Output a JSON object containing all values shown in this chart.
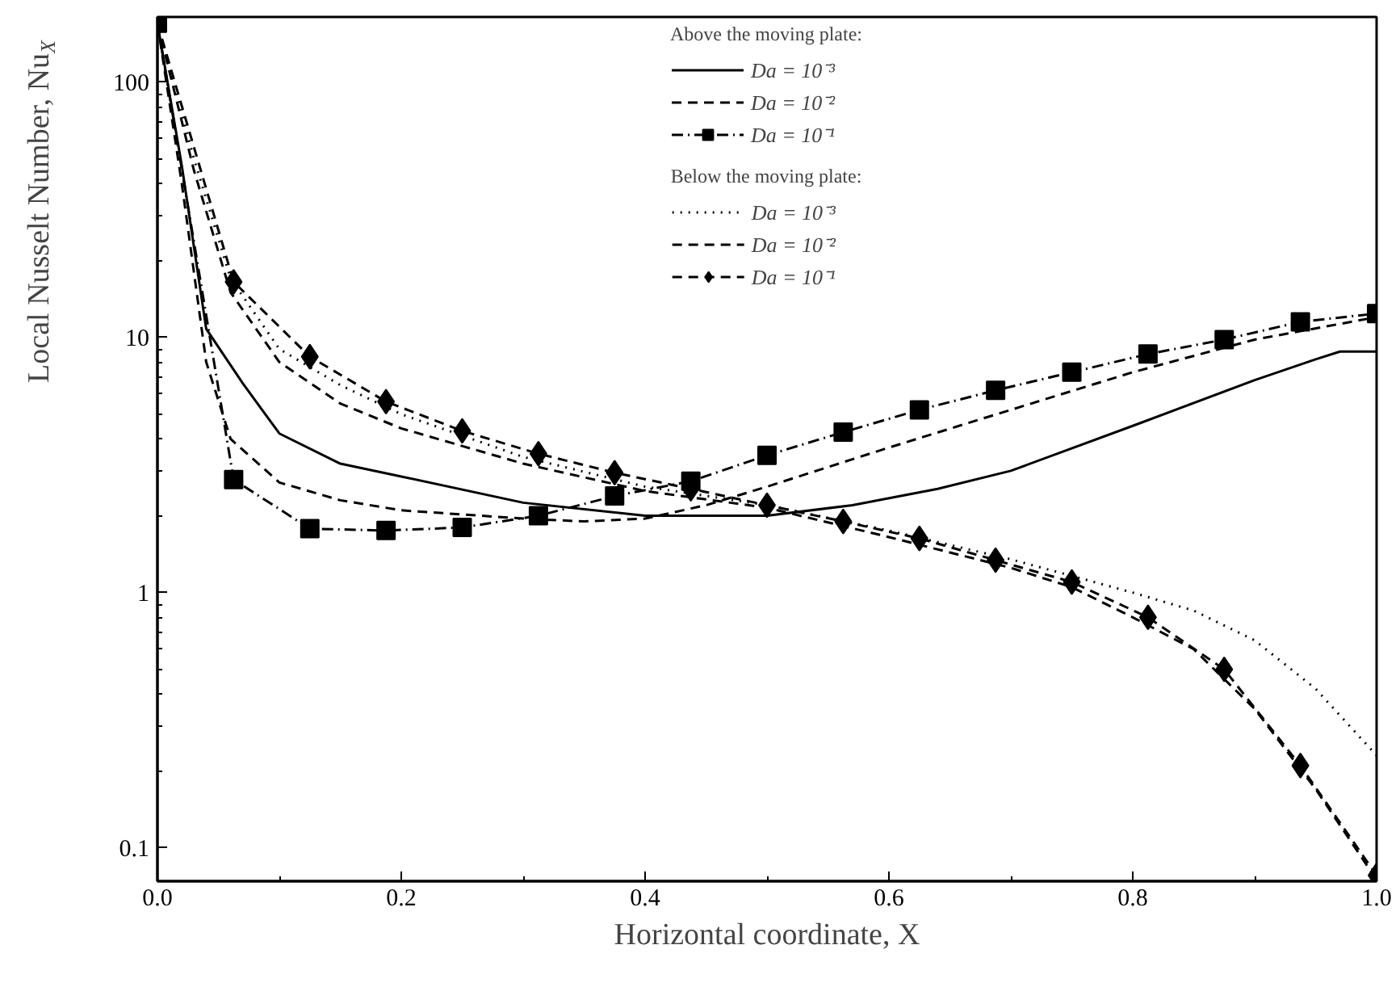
{
  "chart_data": {
    "type": "line",
    "xlabel": "Horizontal coordinate, X",
    "ylabel": "Local Nusselt Number, Nu$_{X}$",
    "legend_title": "Above the moving plate:",
    "annotations": [
      "Below the moving plate:"
    ],
    "log": "y",
    "grid": false,
    "legend": "top",
    "xlim": [
      0,
      1
    ],
    "ylim": [
      0.074,
      180
    ],
    "xticks": [
      {
        "value": 0,
        "label": "0.0"
      },
      {
        "value": 0.2,
        "label": "0.2"
      },
      {
        "value": 0.4,
        "label": "0.4"
      },
      {
        "value": 0.6,
        "label": "0.6"
      },
      {
        "value": 0.8,
        "label": "0.8"
      },
      {
        "value": 1,
        "label": "1.0"
      }
    ],
    "yticks": [
      0.1,
      1,
      10,
      100
    ],
    "series": [
      {
        "name": "Da = 10⁻³",
        "color": "#000000",
        "line_style": "solid",
        "marker": "none",
        "x": [
          0,
          0.02,
          0.04,
          0.07,
          0.1,
          0.15,
          0.2,
          0.3,
          0.4,
          0.5,
          0.57,
          0.64,
          0.7,
          0.8,
          0.9,
          0.95,
          0.97,
          1.0
        ],
        "values": [
          170,
          47,
          10.8,
          6.6,
          4.2,
          3.2,
          2.85,
          2.25,
          2.0,
          2.0,
          2.2,
          2.55,
          3.0,
          4.5,
          6.8,
          8.2,
          8.8,
          8.8
        ]
      },
      {
        "name": "Da = 10⁻²",
        "color": "#000000",
        "line_style": "dashed",
        "marker": "none",
        "x": [
          0,
          0.02,
          0.04,
          0.06,
          0.1,
          0.15,
          0.2,
          0.3,
          0.35,
          0.4,
          0.45,
          0.5,
          0.6,
          0.7,
          0.8,
          0.9,
          1.0
        ],
        "values": [
          170,
          40,
          8,
          4,
          2.7,
          2.3,
          2.1,
          1.95,
          1.9,
          1.95,
          2.2,
          2.6,
          3.7,
          5.2,
          7.3,
          9.8,
          12
        ]
      },
      {
        "name": "Da = 10⁻¹",
        "color": "#000000",
        "line_style": "dashdot",
        "marker": "square",
        "x": [
          0,
          0.0625,
          0.125,
          0.1875,
          0.25,
          0.3125,
          0.375,
          0.4375,
          0.5,
          0.5625,
          0.625,
          0.6875,
          0.75,
          0.8125,
          0.875,
          0.9375,
          1.0
        ],
        "values": [
          170,
          2.77,
          1.78,
          1.75,
          1.8,
          2.0,
          2.39,
          2.73,
          3.45,
          4.25,
          5.2,
          6.2,
          7.3,
          8.6,
          9.8,
          11.5,
          12.4
        ]
      },
      {
        "name": "Da = 10⁻³",
        "color": "#000000",
        "line_style": "dotted",
        "marker": "none",
        "x": [
          0,
          0.03,
          0.06,
          0.1,
          0.15,
          0.2,
          0.3,
          0.4,
          0.5,
          0.6,
          0.7,
          0.8,
          0.85,
          0.9,
          0.95,
          1.0
        ],
        "values": [
          170,
          50,
          17,
          9,
          6.5,
          5,
          3.4,
          2.6,
          2.2,
          1.75,
          1.35,
          1.0,
          0.85,
          0.65,
          0.42,
          0.23
        ]
      },
      {
        "name": "Da = 10⁻²",
        "color": "#000000",
        "line_style": "dashed",
        "marker": "none",
        "x": [
          0,
          0.03,
          0.06,
          0.1,
          0.15,
          0.2,
          0.3,
          0.4,
          0.5,
          0.6,
          0.7,
          0.75,
          0.8,
          0.85,
          0.9,
          0.95,
          1.0
        ],
        "values": [
          170,
          45,
          15,
          8,
          5.5,
          4.4,
          3.2,
          2.5,
          2.15,
          1.65,
          1.25,
          1.05,
          0.8,
          0.6,
          0.35,
          0.17,
          0.075
        ]
      },
      {
        "name": "Da = 10⁻¹",
        "color": "#000000",
        "line_style": "dashed",
        "marker": "diamond",
        "x": [
          0,
          0.0625,
          0.125,
          0.1875,
          0.25,
          0.3125,
          0.375,
          0.4375,
          0.5,
          0.5625,
          0.625,
          0.6875,
          0.75,
          0.8125,
          0.875,
          0.9375,
          1.0
        ],
        "values": [
          170,
          16.5,
          8.4,
          5.6,
          4.3,
          3.5,
          2.95,
          2.55,
          2.2,
          1.9,
          1.63,
          1.34,
          1.1,
          0.8,
          0.5,
          0.21,
          0.078
        ]
      }
    ]
  }
}
